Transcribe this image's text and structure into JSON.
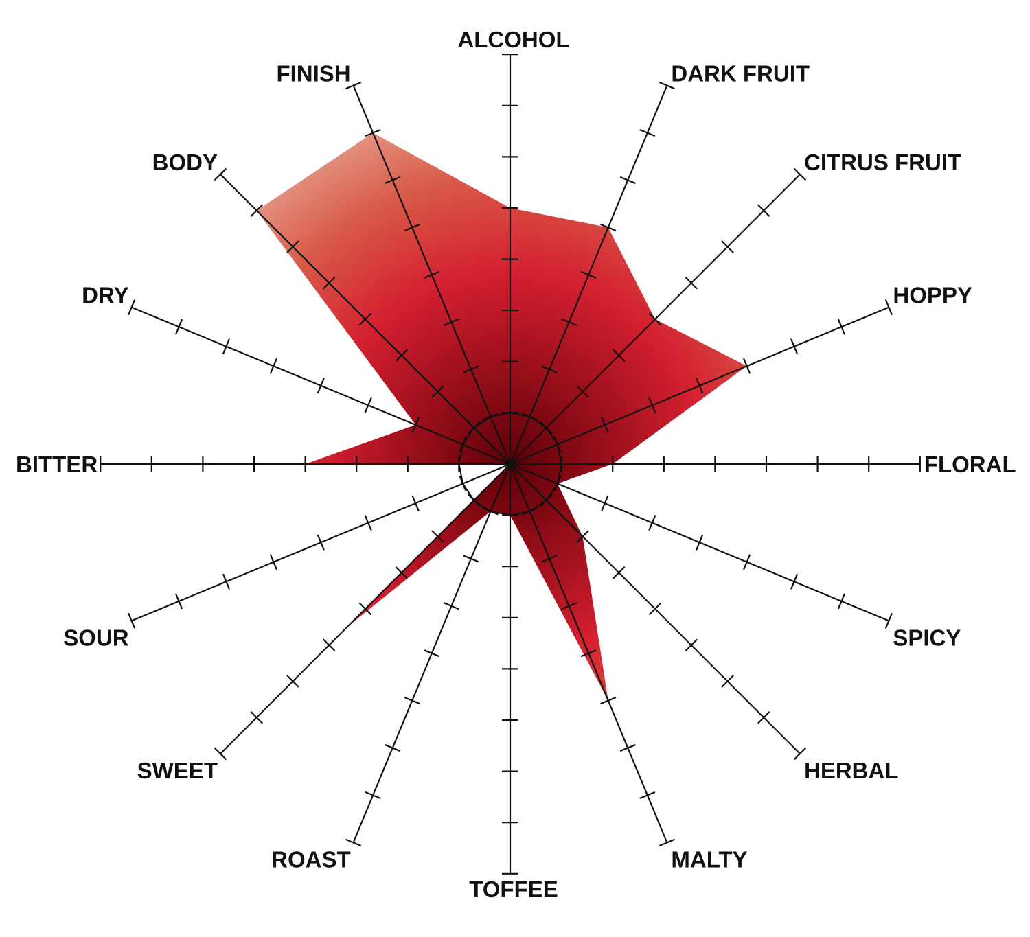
{
  "chart_data": {
    "type": "radar",
    "title": "",
    "axes": [
      "ALCOHOL",
      "DARK FRUIT",
      "CITRUS FRUIT",
      "HOPPY",
      "FLORAL",
      "SPICY",
      "HERBAL",
      "MALTY",
      "TOFFEE",
      "ROAST",
      "SWEET",
      "SOUR",
      "BITTER",
      "DRY",
      "BODY",
      "FINISH"
    ],
    "values": [
      5,
      5,
      4,
      5,
      2,
      1,
      2,
      5,
      1,
      1,
      4.5,
      0,
      4,
      2,
      7,
      7
    ],
    "rlim": [
      0,
      8
    ],
    "tick_step": 1,
    "reference_ring": 1,
    "grid": false,
    "fill_gradient": [
      "#5c0006",
      "#a5121f",
      "#d42030",
      "#d85a48",
      "#e8a594"
    ]
  }
}
